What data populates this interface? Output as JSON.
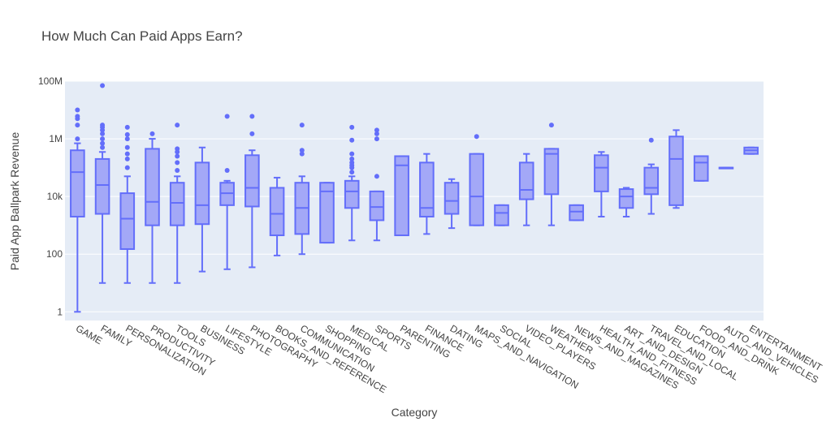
{
  "chart_data": {
    "type": "box",
    "title": "How Much Can Paid Apps Earn?",
    "xlabel": "Category",
    "ylabel": "Paid App Ballpark Revenue",
    "y_scale": "log",
    "ylim": [
      0.5,
      100000000
    ],
    "y_ticks": [
      {
        "value": 1,
        "label": "1"
      },
      {
        "value": 100,
        "label": "100"
      },
      {
        "value": 10000,
        "label": "10k"
      },
      {
        "value": 1000000,
        "label": "1M"
      },
      {
        "value": 100000000,
        "label": "100M"
      }
    ],
    "grid": true,
    "legend": "none",
    "colors": {
      "box_line": "#636efa",
      "box_fill": "#a3a8f7",
      "plot_bg": "#e5ecf6",
      "grid": "#ffffff",
      "text": "#444444"
    },
    "categories": [
      "GAME",
      "FAMILY",
      "PERSONALIZATION",
      "PRODUCTIVITY",
      "TOOLS",
      "BUSINESS",
      "LIFESTYLE",
      "PHOTOGRAPHY",
      "BOOKS_AND_REFERENCE",
      "COMMUNICATION",
      "SHOPPING",
      "MEDICAL",
      "SPORTS",
      "PARENTING",
      "FINANCE",
      "DATING",
      "MAPS_AND_NAVIGATION",
      "SOCIAL",
      "VIDEO_PLAYERS",
      "WEATHER",
      "NEWS_AND_MAGAZINES",
      "HEALTH_AND_FITNESS",
      "ART_AND_DESIGN",
      "TRAVEL_AND_LOCAL",
      "EDUCATION",
      "FOOD_AND_DRINK",
      "AUTO_AND_VEHICLES",
      "ENTERTAINMENT"
    ],
    "boxes": [
      {
        "category": "GAME",
        "min": 1,
        "q1": 2000,
        "median": 70000,
        "q3": 400000,
        "max": 700000,
        "outliers": [
          1000000,
          3000000,
          5000000,
          6000000,
          10000000
        ]
      },
      {
        "category": "FAMILY",
        "min": 10,
        "q1": 2500,
        "median": 25000,
        "q3": 200000,
        "max": 350000,
        "outliers": [
          500000,
          700000,
          1000000,
          1500000,
          2000000,
          2500000,
          3000000,
          70000000
        ]
      },
      {
        "category": "PERSONALIZATION",
        "min": 10,
        "q1": 150,
        "median": 1700,
        "q3": 13000,
        "max": 50000,
        "outliers": [
          100000,
          200000,
          300000,
          500000,
          1000000,
          1400000,
          2500000
        ]
      },
      {
        "category": "PRODUCTIVITY",
        "min": 10,
        "q1": 1000,
        "median": 6500,
        "q3": 450000,
        "max": 1000000,
        "outliers": [
          1500000
        ]
      },
      {
        "category": "TOOLS",
        "min": 10,
        "q1": 1000,
        "median": 6000,
        "q3": 30000,
        "max": 50000,
        "outliers": [
          80000,
          150000,
          250000,
          350000,
          450000,
          3000000
        ]
      },
      {
        "category": "BUSINESS",
        "min": 25,
        "q1": 1100,
        "median": 5000,
        "q3": 150000,
        "max": 500000,
        "outliers": []
      },
      {
        "category": "LIFESTYLE",
        "min": 30,
        "q1": 5000,
        "median": 13000,
        "q3": 30000,
        "max": 35000,
        "outliers": [
          80000,
          6000000
        ]
      },
      {
        "category": "PHOTOGRAPHY",
        "min": 35,
        "q1": 4500,
        "median": 20000,
        "q3": 270000,
        "max": 400000,
        "outliers": [
          1500000,
          6000000
        ]
      },
      {
        "category": "BOOKS_AND_REFERENCE",
        "min": 90,
        "q1": 450,
        "median": 2500,
        "q3": 20000,
        "max": 45000,
        "outliers": []
      },
      {
        "category": "COMMUNICATION",
        "min": 100,
        "q1": 500,
        "median": 4000,
        "q3": 30000,
        "max": 50000,
        "outliers": [
          300000,
          400000,
          3000000
        ]
      },
      {
        "category": "SHOPPING",
        "min": 250,
        "q1": 250,
        "median": 15000,
        "q3": 30000,
        "max": 30000,
        "outliers": []
      },
      {
        "category": "MEDICAL",
        "min": 300,
        "q1": 4000,
        "median": 15000,
        "q3": 35000,
        "max": 50000,
        "outliers": [
          70000,
          100000,
          120000,
          150000,
          200000,
          300000,
          900000,
          2500000
        ]
      },
      {
        "category": "SPORTS",
        "min": 300,
        "q1": 1500,
        "median": 4300,
        "q3": 15000,
        "max": 15000,
        "outliers": [
          50000,
          1000000,
          1500000,
          2000000
        ]
      },
      {
        "category": "PARENTING",
        "min": 450,
        "q1": 450,
        "median": 120000,
        "q3": 250000,
        "max": 250000,
        "outliers": []
      },
      {
        "category": "FINANCE",
        "min": 500,
        "q1": 2000,
        "median": 4000,
        "q3": 150000,
        "max": 300000,
        "outliers": []
      },
      {
        "category": "DATING",
        "min": 800,
        "q1": 2500,
        "median": 7000,
        "q3": 30000,
        "max": 40000,
        "outliers": []
      },
      {
        "category": "MAPS_AND_NAVIGATION",
        "min": 1000,
        "q1": 1000,
        "median": 10000,
        "q3": 300000,
        "max": 300000,
        "outliers": [
          1200000
        ]
      },
      {
        "category": "SOCIAL",
        "min": 1000,
        "q1": 1000,
        "median": 2700,
        "q3": 5000,
        "max": 5000,
        "outliers": []
      },
      {
        "category": "VIDEO_PLAYERS",
        "min": 1000,
        "q1": 8000,
        "median": 17000,
        "q3": 150000,
        "max": 300000,
        "outliers": []
      },
      {
        "category": "WEATHER",
        "min": 1000,
        "q1": 12000,
        "median": 300000,
        "q3": 450000,
        "max": 450000,
        "outliers": [
          3000000
        ]
      },
      {
        "category": "NEWS_AND_MAGAZINES",
        "min": 1500,
        "q1": 1500,
        "median": 3000,
        "q3": 5000,
        "max": 5000,
        "outliers": []
      },
      {
        "category": "HEALTH_AND_FITNESS",
        "min": 2000,
        "q1": 15000,
        "median": 100000,
        "q3": 270000,
        "max": 350000,
        "outliers": []
      },
      {
        "category": "ART_AND_DESIGN",
        "min": 2000,
        "q1": 4000,
        "median": 10000,
        "q3": 18000,
        "max": 20000,
        "outliers": []
      },
      {
        "category": "TRAVEL_AND_LOCAL",
        "min": 2500,
        "q1": 12000,
        "median": 20000,
        "q3": 100000,
        "max": 130000,
        "outliers": [
          900000
        ]
      },
      {
        "category": "EDUCATION",
        "min": 4000,
        "q1": 5000,
        "median": 200000,
        "q3": 1200000,
        "max": 2000000,
        "outliers": []
      },
      {
        "category": "FOOD_AND_DRINK",
        "min": 35000,
        "q1": 35000,
        "median": 150000,
        "q3": 250000,
        "max": 250000,
        "outliers": []
      },
      {
        "category": "AUTO_AND_VEHICLES",
        "min": 100000,
        "q1": 100000,
        "median": 100000,
        "q3": 100000,
        "max": 100000,
        "outliers": []
      },
      {
        "category": "ENTERTAINMENT",
        "min": 300000,
        "q1": 300000,
        "median": 400000,
        "q3": 500000,
        "max": 500000,
        "outliers": []
      }
    ]
  }
}
